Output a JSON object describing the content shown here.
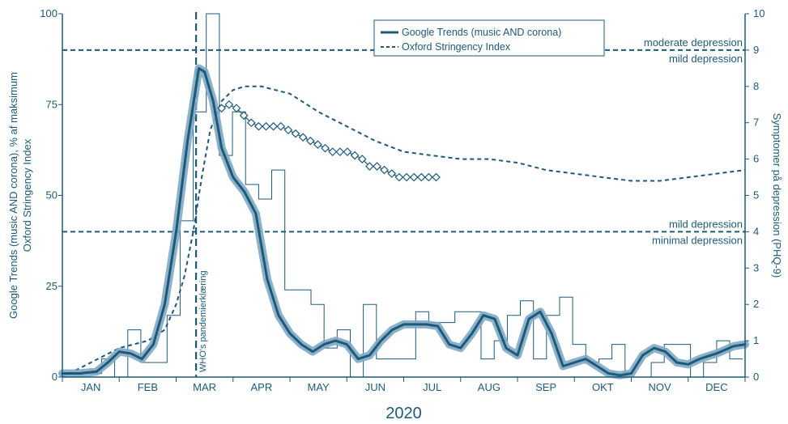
{
  "chart_data": {
    "type": "line",
    "year_label": "2020",
    "x_tick_labels": [
      "JAN",
      "FEB",
      "MAR",
      "APR",
      "MAY",
      "JUN",
      "JUL",
      "AUG",
      "SEP",
      "OKT",
      "NOV",
      "DEC"
    ],
    "y_left": {
      "label_line1": "Google Trends (music AND corona), % af maksimum",
      "label_line2": "Oxford Stringency Index",
      "range": [
        0,
        100
      ],
      "ticks": [
        "0",
        "25",
        "50",
        "75",
        "100"
      ]
    },
    "y_right": {
      "label": "Symptomer på depression (PHQ-9)",
      "range": [
        0,
        10
      ],
      "ticks": [
        "0",
        "1",
        "2",
        "3",
        "4",
        "5",
        "6",
        "7",
        "8",
        "9",
        "10"
      ]
    },
    "thresholds": [
      {
        "y_right": 9,
        "label_above": "moderate depression",
        "label_below": "mild depression"
      },
      {
        "y_right": 4,
        "label_above": "mild depression",
        "label_below": "minimal depression"
      }
    ],
    "annotation": {
      "label": "WHO's pandemierklæring",
      "x_month": 2.35
    },
    "legend": {
      "position": "top-center",
      "items": [
        {
          "label": "Google Trends (music AND corona)",
          "style": "solid"
        },
        {
          "label": "Oxford Stringency Index",
          "style": "dashed"
        }
      ]
    },
    "colors": {
      "main": "#1e5a78",
      "halo": "#7fa8c4"
    },
    "series": [
      {
        "name": "Google Trends (music AND corona)",
        "kind": "weekly_steps",
        "x_month": [
          0,
          0.23,
          0.46,
          0.69,
          0.92,
          1.15,
          1.38,
          1.61,
          1.84,
          2.07,
          2.3,
          2.53,
          2.76,
          2.99,
          3.22,
          3.45,
          3.68,
          3.91,
          4.14,
          4.37,
          4.6,
          4.83,
          5.06,
          5.29,
          5.52,
          5.75,
          5.98,
          6.21,
          6.44,
          6.67,
          6.9,
          7.13,
          7.36,
          7.59,
          7.82,
          8.05,
          8.28,
          8.51,
          8.74,
          8.97,
          9.2,
          9.43,
          9.66,
          9.89,
          10.12,
          10.35,
          10.58,
          10.81,
          11.04,
          11.27,
          11.5,
          11.73
        ],
        "values": [
          1,
          1,
          1,
          5,
          0,
          13,
          4,
          4,
          17,
          43,
          73,
          100,
          61,
          73,
          53,
          49,
          57,
          24,
          24,
          20,
          8,
          13,
          0,
          20,
          5,
          5,
          5,
          18,
          15,
          15,
          18,
          18,
          5,
          10,
          17,
          21,
          5,
          17,
          22,
          9,
          4,
          5,
          9,
          0,
          0,
          4,
          9,
          9,
          0,
          4,
          10,
          5
        ]
      },
      {
        "name": "Google Trends smoothed",
        "kind": "smoothed",
        "x_month": [
          0,
          0.3,
          0.6,
          0.8,
          1.0,
          1.2,
          1.4,
          1.6,
          1.8,
          2.0,
          2.2,
          2.4,
          2.5,
          2.65,
          2.8,
          3.0,
          3.2,
          3.4,
          3.6,
          3.8,
          4.0,
          4.2,
          4.4,
          4.6,
          4.8,
          5.0,
          5.2,
          5.4,
          5.6,
          5.8,
          6.0,
          6.2,
          6.4,
          6.6,
          6.8,
          7.0,
          7.2,
          7.4,
          7.6,
          7.8,
          8.0,
          8.2,
          8.4,
          8.6,
          8.8,
          9.0,
          9.2,
          9.4,
          9.6,
          9.8,
          10.0,
          10.2,
          10.4,
          10.6,
          10.8,
          11.0,
          11.2,
          11.5,
          11.8,
          12.0
        ],
        "values": [
          1,
          1,
          1.5,
          4,
          7,
          6.5,
          5,
          9,
          20,
          40,
          65,
          85,
          84,
          76,
          63,
          55,
          51,
          45,
          27,
          17,
          12,
          9,
          7,
          9,
          10,
          9,
          5,
          6,
          10,
          13,
          14.5,
          14.5,
          14.5,
          14,
          9,
          8,
          12,
          17,
          16,
          8,
          6,
          16,
          18,
          12,
          3,
          4,
          5,
          3,
          1,
          0.5,
          1,
          6,
          8,
          7,
          4,
          3.5,
          5,
          6.5,
          8.5,
          9
        ]
      },
      {
        "name": "Oxford Stringency Index",
        "kind": "dashed",
        "x_month": [
          0,
          1.0,
          1.5,
          1.8,
          2.0,
          2.15,
          2.3,
          2.45,
          2.6,
          2.8,
          3.0,
          3.2,
          3.5,
          4.0,
          4.5,
          5.0,
          5.5,
          6.0,
          6.5,
          7.0,
          7.5,
          8.0,
          8.5,
          9.0,
          9.5,
          10.0,
          10.5,
          11.0,
          11.5,
          12.0
        ],
        "values": [
          0,
          8,
          10,
          13,
          20,
          28,
          40,
          55,
          68,
          76,
          79,
          80,
          80,
          78,
          73,
          69,
          65,
          62,
          61,
          60,
          60,
          59,
          57,
          56,
          55,
          54,
          54,
          55,
          56,
          57
        ]
      },
      {
        "name": "PHQ-9",
        "kind": "diamonds",
        "y_axis": "right",
        "x_month": [
          2.8,
          2.93,
          3.06,
          3.19,
          3.32,
          3.45,
          3.58,
          3.71,
          3.84,
          3.97,
          4.1,
          4.23,
          4.36,
          4.49,
          4.62,
          4.75,
          4.88,
          5.01,
          5.14,
          5.27,
          5.4,
          5.53,
          5.66,
          5.79,
          5.92,
          6.05,
          6.18,
          6.31,
          6.44,
          6.57
        ],
        "values": [
          7.4,
          7.5,
          7.4,
          7.2,
          7.0,
          6.9,
          6.9,
          6.9,
          6.9,
          6.8,
          6.7,
          6.6,
          6.5,
          6.4,
          6.3,
          6.2,
          6.2,
          6.2,
          6.1,
          6.0,
          5.8,
          5.8,
          5.7,
          5.6,
          5.5,
          5.5,
          5.5,
          5.5,
          5.5,
          5.5
        ]
      }
    ]
  }
}
